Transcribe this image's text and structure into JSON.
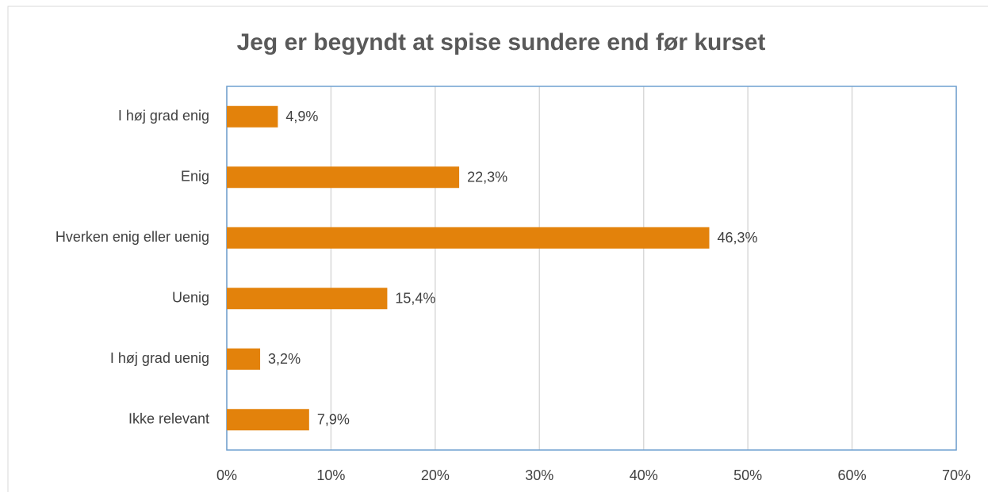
{
  "chart_data": {
    "type": "bar",
    "orientation": "horizontal",
    "title": "Jeg er begyndt at spise sundere end før kurset",
    "categories": [
      "I høj grad enig",
      "Enig",
      "Hverken enig eller uenig",
      "Uenig",
      "I høj grad uenig",
      "Ikke relevant"
    ],
    "values": [
      4.9,
      22.3,
      46.3,
      15.4,
      3.2,
      7.9
    ],
    "value_labels": [
      "4,9%",
      "22,3%",
      "46,3%",
      "15,4%",
      "3,2%",
      "7,9%"
    ],
    "color": "#e3820b",
    "xlim": [
      0,
      70
    ],
    "xticks": [
      {
        "value": 0,
        "label": "0%"
      },
      {
        "value": 10,
        "label": "10%"
      },
      {
        "value": 20,
        "label": "20%"
      },
      {
        "value": 30,
        "label": "30%"
      },
      {
        "value": 40,
        "label": "40%"
      },
      {
        "value": 50,
        "label": "50%"
      },
      {
        "value": 60,
        "label": "60%"
      },
      {
        "value": 70,
        "label": "70%"
      }
    ],
    "grid": true
  }
}
